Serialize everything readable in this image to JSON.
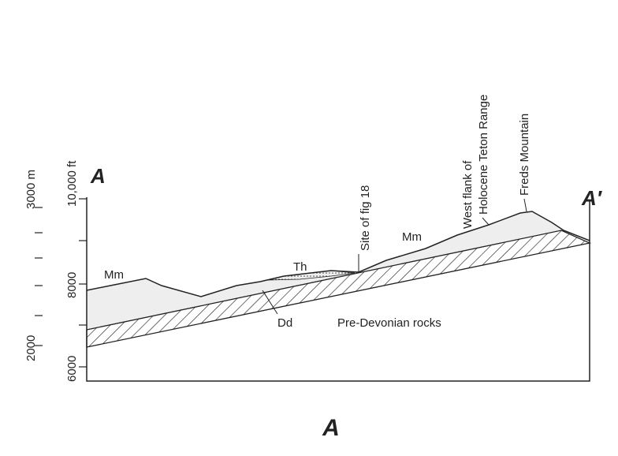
{
  "section": {
    "start_label": "A",
    "end_label": "A′",
    "caption": "A"
  },
  "axis": {
    "meters_top": "3000 m",
    "feet_top": "10,000 ft",
    "feet_mid": "8000",
    "meters_low": "2000",
    "feet_low": "6000"
  },
  "units": {
    "mm_left": "Mm",
    "mm_right": "Mm",
    "th": "Th",
    "dd": "Dd",
    "basement": "Pre-Devonian rocks"
  },
  "callouts": {
    "site": "Site of fig 18",
    "flank_line1": "West flank of",
    "flank_line2": "Holocene Teton Range",
    "mountain": "Freds Mountain"
  }
}
